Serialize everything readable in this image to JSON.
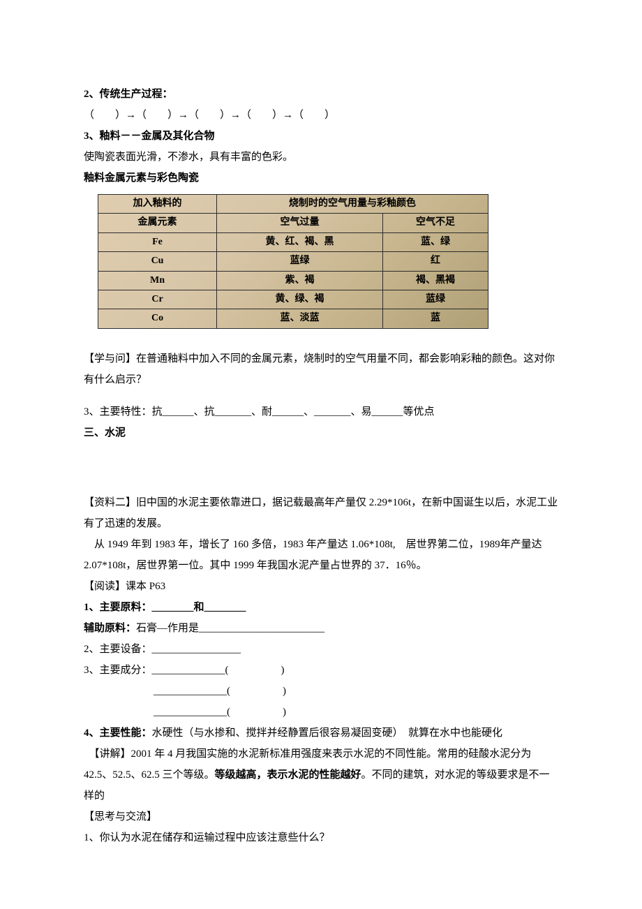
{
  "s2": {
    "title": "2、传统生产过程：",
    "flow": "（　　）→（　　）→（　　）→（　　）→（　　）"
  },
  "s3a": {
    "title": "3、釉料－－金属及其化合物",
    "desc": "使陶瓷表面光滑，不渗水，具有丰富的色彩。",
    "sub": "釉料金属元素与彩色陶瓷"
  },
  "glazeTable": {
    "header_left": "加入釉料的",
    "header_left2": "金属元素",
    "header_right": "烧制时的空气用量与彩釉颜色",
    "col_air_excess": "空气过量",
    "col_air_lack": "空气不足",
    "rows": [
      {
        "el": "Fe",
        "excess": "黄、红、褐、黑",
        "lack": "蓝、绿"
      },
      {
        "el": "Cu",
        "excess": "蓝绿",
        "lack": "红"
      },
      {
        "el": "Mn",
        "excess": "紫、褐",
        "lack": "褐、黑褐"
      },
      {
        "el": "Cr",
        "excess": "黄、绿、褐",
        "lack": "蓝绿"
      },
      {
        "el": "Co",
        "excess": "蓝、淡蓝",
        "lack": "蓝"
      }
    ],
    "border_color": "#2b2b2b",
    "bg_gradient": [
      "#e0cdb0",
      "#d8c6a8",
      "#c9b790",
      "#b0a076"
    ],
    "fontsize": 14
  },
  "learnAsk": "【学与问】在普通釉料中加入不同的金属元素，烧制时的空气用量不同，都会影响彩釉的颜色。这对你有什么启示？",
  "s3b": "3、主要特性：抗______、抗_______、耐______、_______、易______等优点",
  "s3c": "三、水泥",
  "material2": "【资料二】旧中国的水泥主要依靠进口，据记载最高年产量仅 2.29*106t，在新中国诞生以后，水泥工业有了迅速的发展。",
  "material2b": "　从 1949 年到 1983 年，增长了 160 多倍，1983 年产量达 1.06*108t,　居世界第二位，1989年产量达 2.07*108t，居世界第一位。其中 1999 年我国水泥产量占世界的 37．16％。",
  "read": "【阅读】课本 P63",
  "i1": "1、主要原料：________和________",
  "i1b": "辅助原料：石膏—作用是________________________",
  "i2": "2、主要设备：_________________",
  "i3": "3、主要成分：______________(　　　　　)",
  "i3b": "______________(　　　　　)",
  "i3c": "______________(　　　　　)",
  "i4a": "4、主要性能：",
  "i4b": "水硬性（与水掺和、搅拌并经静置后很容易凝固变硬）　就算在水中也能硬化",
  "explain": "【讲解】2001 年 4 月我国实施的水泥新标准用强度来表示水泥的不同性能。常用的硅酸水泥分为 42.5、52.5、62.5 三个等级。",
  "explain_b": "等级越高，表示水泥的性能越好",
  "explain_c": "。不同的建筑，对水泥的等级要求是不一样的",
  "think": "【思考与交流】",
  "think1": "1、你认为水泥在储存和运输过程中应该注意些什么？"
}
